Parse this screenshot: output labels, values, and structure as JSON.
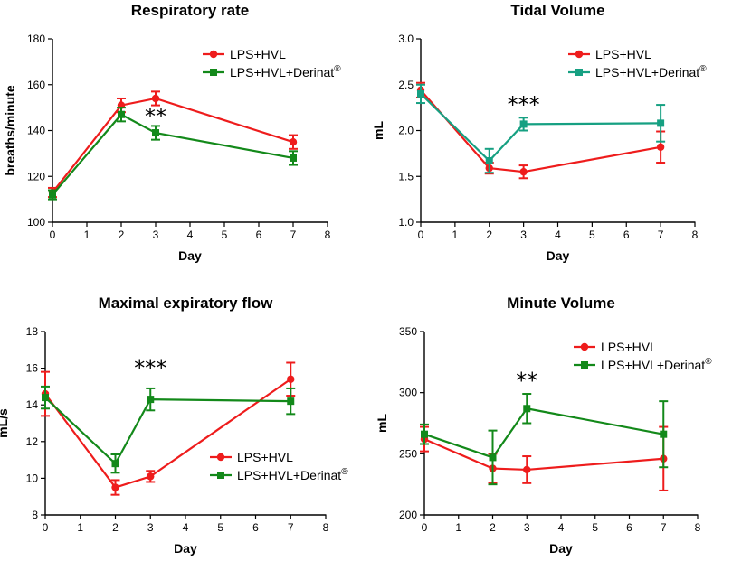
{
  "chart_data": [
    {
      "type": "line",
      "title": "Respiratory rate",
      "xlabel": "Day",
      "ylabel": "breaths/minute",
      "xlim": [
        0,
        8
      ],
      "ylim": [
        100,
        180
      ],
      "xticks": [
        "0",
        "1",
        "2",
        "3",
        "4",
        "5",
        "6",
        "7",
        "8"
      ],
      "yticks": [
        "100",
        "120",
        "140",
        "160",
        "180"
      ],
      "ytick_values": [
        100,
        120,
        140,
        160,
        180
      ],
      "annotation": {
        "text": "**",
        "x": 3,
        "y": 143
      },
      "legend_position": "top-right",
      "series": [
        {
          "name": "LPS+HVL",
          "color": "#ee1c1c",
          "marker": "circle",
          "x": [
            0,
            2,
            3,
            7
          ],
          "values": [
            113,
            151,
            154,
            135
          ],
          "errors": [
            2,
            3,
            3,
            3
          ]
        },
        {
          "name": "LPS+HVL+Derinat",
          "name_sup": "®",
          "color": "#13891a",
          "marker": "square",
          "x": [
            0,
            2,
            3,
            7
          ],
          "values": [
            112,
            147,
            139,
            128
          ],
          "errors": [
            2,
            3,
            3,
            3
          ]
        }
      ]
    },
    {
      "type": "line",
      "title": "Tidal Volume",
      "xlabel": "Day",
      "ylabel": "mL",
      "xlim": [
        0,
        8
      ],
      "ylim": [
        1.0,
        3.0
      ],
      "xticks": [
        "0",
        "1",
        "2",
        "3",
        "4",
        "5",
        "6",
        "7",
        "8"
      ],
      "yticks": [
        "1.0",
        "1.5",
        "2.0",
        "2.5",
        "3.0"
      ],
      "ytick_values": [
        1.0,
        1.5,
        2.0,
        2.5,
        3.0
      ],
      "annotation": {
        "text": "***",
        "x": 3,
        "y": 2.2
      },
      "legend_position": "top-right",
      "series": [
        {
          "name": "LPS+HVL",
          "color": "#ee1c1c",
          "marker": "circle",
          "x": [
            0,
            2,
            3,
            7
          ],
          "values": [
            2.44,
            1.59,
            1.55,
            1.82
          ],
          "errors": [
            0.08,
            0.06,
            0.07,
            0.17
          ]
        },
        {
          "name": "LPS+HVL+Derinat",
          "name_sup": "®",
          "color": "#16a082",
          "marker": "square",
          "x": [
            0,
            2,
            3,
            7
          ],
          "values": [
            2.4,
            1.67,
            2.07,
            2.08
          ],
          "errors": [
            0.1,
            0.13,
            0.07,
            0.2
          ]
        }
      ]
    },
    {
      "type": "line",
      "title": "Maximal expiratory flow",
      "xlabel": "Day",
      "ylabel": "mL/s",
      "xlim": [
        0,
        8
      ],
      "ylim": [
        8,
        18
      ],
      "xticks": [
        "0",
        "1",
        "2",
        "3",
        "4",
        "5",
        "6",
        "7",
        "8"
      ],
      "yticks": [
        "8",
        "10",
        "12",
        "14",
        "16",
        "18"
      ],
      "ytick_values": [
        8,
        10,
        12,
        14,
        16,
        18
      ],
      "annotation": {
        "text": "***",
        "x": 3,
        "y": 15.6
      },
      "legend_position": "lower-center",
      "series": [
        {
          "name": "LPS+HVL",
          "color": "#ee1c1c",
          "marker": "circle",
          "x": [
            0,
            2,
            3,
            7
          ],
          "values": [
            14.6,
            9.5,
            10.1,
            15.4
          ],
          "errors": [
            1.2,
            0.4,
            0.3,
            0.9
          ]
        },
        {
          "name": "LPS+HVL+Derinat",
          "name_sup": "®",
          "color": "#13891a",
          "marker": "square",
          "x": [
            0,
            2,
            3,
            7
          ],
          "values": [
            14.4,
            10.8,
            14.3,
            14.2
          ],
          "errors": [
            0.6,
            0.5,
            0.6,
            0.7
          ]
        }
      ]
    },
    {
      "type": "line",
      "title": "Minute Volume",
      "xlabel": "Day",
      "ylabel": "mL",
      "xlim": [
        0,
        8
      ],
      "ylim": [
        200,
        350
      ],
      "xticks": [
        "0",
        "1",
        "2",
        "3",
        "4",
        "5",
        "6",
        "7",
        "8"
      ],
      "yticks": [
        "200",
        "250",
        "300",
        "350"
      ],
      "ytick_values": [
        200,
        250,
        300,
        350
      ],
      "annotation": {
        "text": "**",
        "x": 3,
        "y": 304
      },
      "legend_position": "top-right",
      "series": [
        {
          "name": "LPS+HVL",
          "color": "#ee1c1c",
          "marker": "circle",
          "x": [
            0,
            2,
            3,
            7
          ],
          "values": [
            262,
            238,
            237,
            246
          ],
          "errors": [
            10,
            12,
            11,
            26
          ]
        },
        {
          "name": "LPS+HVL+Derinat",
          "name_sup": "®",
          "color": "#13891a",
          "marker": "square",
          "x": [
            0,
            2,
            3,
            7
          ],
          "values": [
            266,
            247,
            287,
            266
          ],
          "errors": [
            8,
            22,
            12,
            27
          ]
        }
      ]
    }
  ]
}
